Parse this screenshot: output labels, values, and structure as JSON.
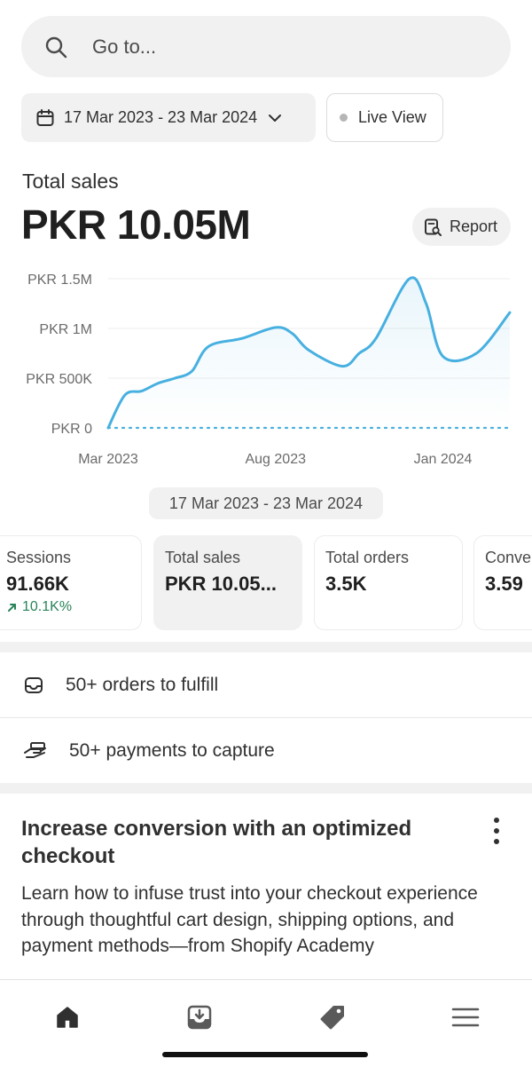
{
  "search": {
    "placeholder": "Go to...",
    "icon": "search-icon"
  },
  "filters": {
    "date_range": "17 Mar 2023 - 23 Mar 2024",
    "live_view": "Live View"
  },
  "summary": {
    "label": "Total sales",
    "value": "PKR 10.05M",
    "report_button": "Report"
  },
  "chart_data": {
    "type": "line",
    "y_ticks": [
      "PKR 1.5M",
      "PKR 1M",
      "PKR 500K",
      "PKR 0"
    ],
    "x_ticks": [
      "Mar 2023",
      "Aug 2023",
      "Jan 2024"
    ],
    "ylim": [
      0,
      1500000
    ],
    "x": [
      "Mar 2023",
      "Mar 2023",
      "Apr 2023",
      "Apr 2023",
      "May 2023",
      "May 2023",
      "Jun 2023",
      "Jul 2023",
      "Aug 2023",
      "Aug 2023",
      "Sep 2023",
      "Oct 2023",
      "Oct 2023",
      "Nov 2023",
      "Dec 2023",
      "Dec 2023",
      "Jan 2024",
      "Feb 2024",
      "Mar 2024"
    ],
    "series": [
      {
        "values": [
          0,
          330000,
          370000,
          450000,
          500000,
          570000,
          820000,
          900000,
          1010000,
          950000,
          780000,
          620000,
          750000,
          900000,
          1500000,
          1250000,
          720000,
          750000,
          1160000
        ]
      }
    ],
    "comparison_baseline": 0,
    "line_color": "#47b0e0",
    "grid": true,
    "range_label": "17 Mar 2023 - 23 Mar 2024"
  },
  "metrics": [
    {
      "label": "Sessions",
      "value": "91.66K",
      "delta": "10.1K%"
    },
    {
      "label": "Total sales",
      "value": "PKR 10.05..."
    },
    {
      "label": "Total orders",
      "value": "3.5K"
    },
    {
      "label": "Conve",
      "value": "3.59"
    }
  ],
  "tasks": [
    {
      "label": "50+ orders to fulfill",
      "icon": "inbox-icon"
    },
    {
      "label": "50+ payments to capture",
      "icon": "hand-payment-icon"
    }
  ],
  "promo": {
    "title": "Increase conversion with an optimized checkout",
    "body": "Learn how to infuse trust into your checkout experience through thoughtful cart design, shipping options, and payment methods—from Shopify Academy"
  },
  "nav": [
    "home-icon",
    "orders-icon",
    "products-icon",
    "menu-icon"
  ],
  "colors": {
    "accent": "#47b0e0",
    "positive": "#29845a",
    "surface": "#f1f1f1"
  }
}
